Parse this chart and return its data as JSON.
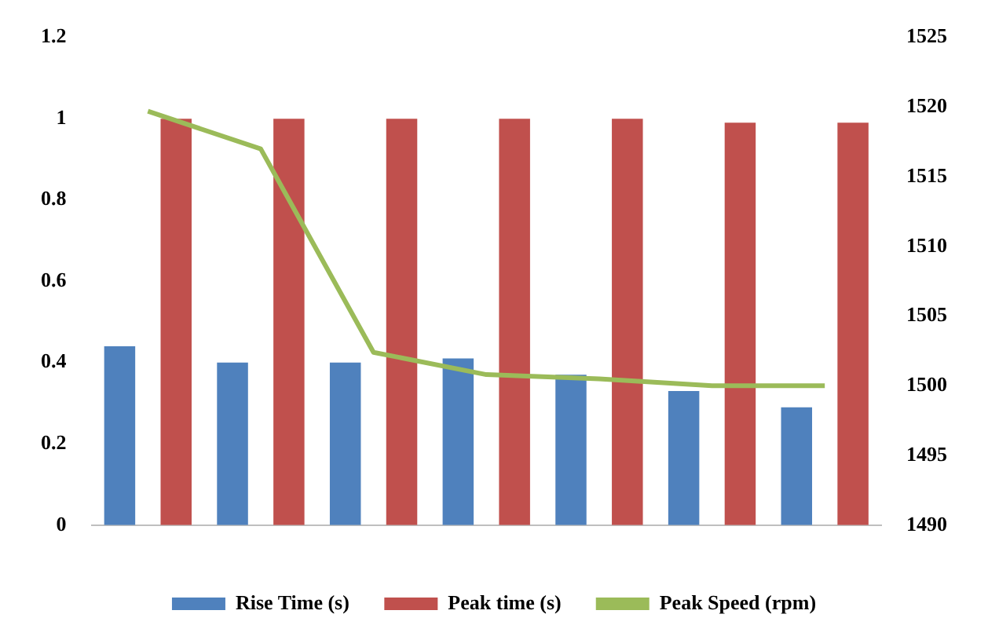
{
  "chart_data": {
    "type": "bar",
    "categories": [
      null,
      null,
      null,
      null,
      null,
      null,
      null
    ],
    "series": [
      {
        "name": "Rise Time (s)",
        "color": "#4f81bd",
        "values": [
          0.44,
          0.4,
          0.4,
          0.41,
          0.37,
          0.33,
          0.29
        ]
      },
      {
        "name": "Peak time (s)",
        "color": "#c0504d",
        "values": [
          1,
          1,
          1,
          1,
          1,
          0.99,
          0.99
        ]
      },
      {
        "name": "Peak Speed (rpm)",
        "type": "line",
        "axis": "y2",
        "color": "#9bbb59",
        "values": [
          1519.7,
          1517,
          1502.4,
          1500.8,
          1500.5,
          1500,
          1500
        ]
      }
    ],
    "ylim": [
      0,
      1.2
    ],
    "yticks": [
      0,
      0.2,
      0.4,
      0.6,
      0.8,
      1,
      1.2
    ],
    "y2lim": [
      1490,
      1525
    ],
    "y2ticks": [
      1490,
      1495,
      1500,
      1505,
      1510,
      1515,
      1520,
      1525
    ],
    "grid": false,
    "legend": "bottom",
    "marker": "none"
  }
}
